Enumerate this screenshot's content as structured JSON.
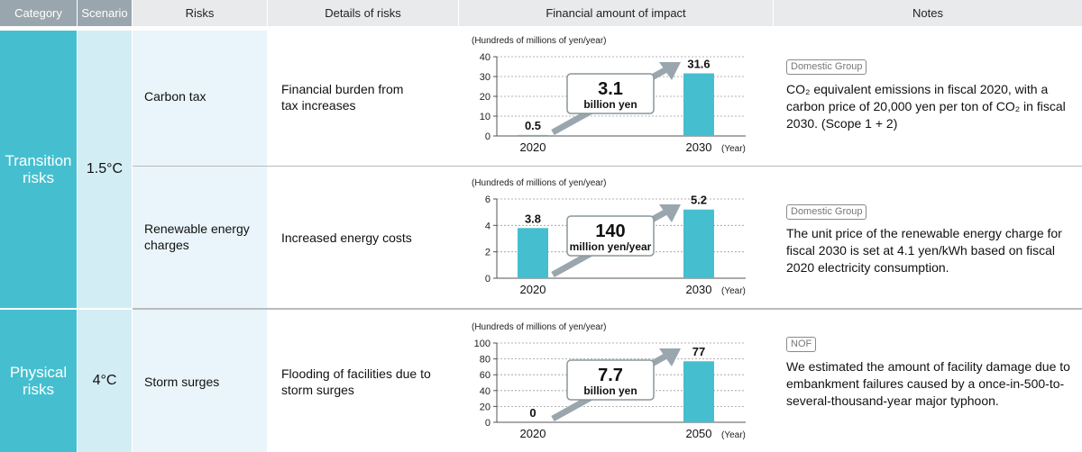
{
  "header": {
    "category": "Category",
    "scenario": "Scenario",
    "risks": "Risks",
    "details": "Details of risks",
    "financial": "Financial amount of impact",
    "notes": "Notes"
  },
  "groups": [
    {
      "category_line1": "Transition",
      "category_line2": "risks",
      "scenario": "1.5°C"
    },
    {
      "category_line1": "Physical",
      "category_line2": "risks",
      "scenario": "4°C"
    }
  ],
  "rows": [
    {
      "risk_line1": "Carbon tax",
      "risk_line2": "",
      "detail_line1": "Financial burden from",
      "detail_line2": "tax increases",
      "badge": "Domestic Group",
      "note": "CO₂ equivalent emissions in fiscal 2020, with a carbon price of 20,000 yen per ton of CO₂ in fiscal 2030. (Scope 1 + 2)"
    },
    {
      "risk_line1": "Renewable energy",
      "risk_line2": "charges",
      "detail_line1": "Increased energy costs",
      "detail_line2": "",
      "badge": "Domestic Group",
      "note": "The unit price of the renewable energy charge for fiscal 2030 is set at 4.1 yen/kWh based on fiscal 2020 electricity consumption."
    },
    {
      "risk_line1": "Storm surges",
      "risk_line2": "",
      "detail_line1": "Flooding of facilities due to",
      "detail_line2": "storm surges",
      "badge": "NOF",
      "note": "We estimated the amount of facility damage due to embankment failures caused by a once-in-500-to-several-thousand-year major typhoon."
    }
  ],
  "colors": {
    "bar": "#45bfcf",
    "arrow": "#9aa6ae",
    "category_bg": "#45bfcf",
    "scenario_bg": "#d3edf4"
  },
  "chart_data": [
    {
      "type": "bar",
      "ylabel": "(Hundreds of millions of yen/year)",
      "xunit": "(Year)",
      "categories": [
        "2020",
        "2030"
      ],
      "values": [
        0.5,
        31.6
      ],
      "value_labels": [
        "0.5",
        "31.6"
      ],
      "yticks": [
        0,
        10,
        20,
        30,
        40
      ],
      "ylim": [
        0,
        40
      ],
      "callout_value": "3.1",
      "callout_unit": "billion yen"
    },
    {
      "type": "bar",
      "ylabel": "(Hundreds of millions of yen/year)",
      "xunit": "(Year)",
      "categories": [
        "2020",
        "2030"
      ],
      "values": [
        3.8,
        5.2
      ],
      "value_labels": [
        "3.8",
        "5.2"
      ],
      "yticks": [
        0,
        2,
        4,
        6
      ],
      "ylim": [
        0,
        6
      ],
      "callout_value": "140",
      "callout_unit": "million yen/year"
    },
    {
      "type": "bar",
      "ylabel": "(Hundreds of millions of yen/year)",
      "xunit": "(Year)",
      "categories": [
        "2020",
        "2050"
      ],
      "values": [
        0,
        77
      ],
      "value_labels": [
        "0",
        "77"
      ],
      "yticks": [
        0,
        20,
        40,
        60,
        80,
        100
      ],
      "ylim": [
        0,
        100
      ],
      "callout_value": "7.7",
      "callout_unit": "billion yen"
    }
  ]
}
